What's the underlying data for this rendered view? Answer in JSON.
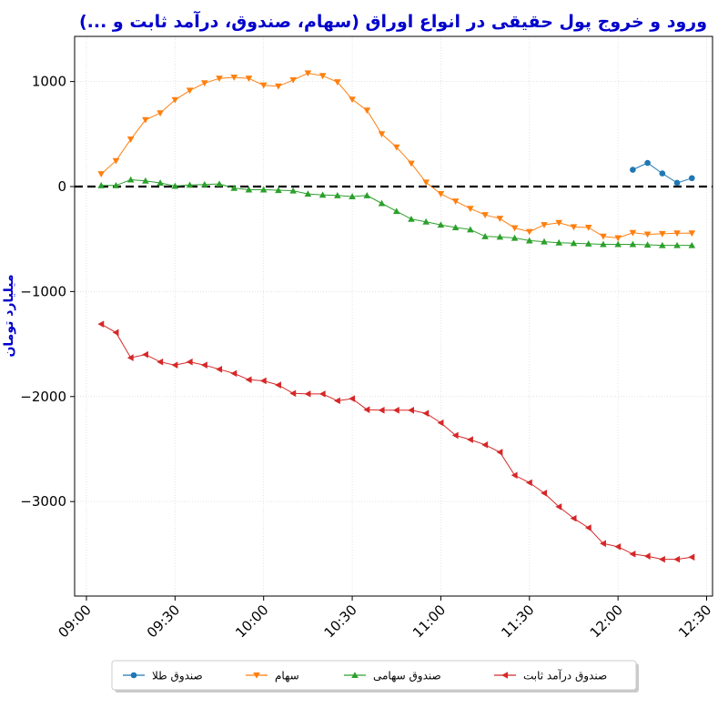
{
  "chart_data": {
    "type": "line",
    "title": "ورود و خروج پول حقیقی در انواع اوراق (سهام، صندوق، درآمد ثابت و ...)",
    "ylabel": "میلیارد تومان",
    "xlabel": "",
    "xlim": [
      "08:56",
      "12:32"
    ],
    "ylim": [
      -3900,
      1430
    ],
    "yticks": [
      1000,
      0,
      -1000,
      -2000,
      -3000
    ],
    "ytick_labels": [
      "1000",
      "0",
      "−1000",
      "−2000",
      "−3000"
    ],
    "xticks": [
      "09:00",
      "09:30",
      "10:00",
      "10:30",
      "11:00",
      "11:30",
      "12:00",
      "12:30"
    ],
    "grid": true,
    "zero_line": true,
    "legend_position": "bottom-center",
    "series": [
      {
        "name": "صندوق طلا",
        "color": "#1f77b4",
        "marker": "circle",
        "x": [
          "12:05",
          "12:10",
          "12:15",
          "12:20",
          "12:25"
        ],
        "values": [
          160,
          225,
          125,
          35,
          80
        ]
      },
      {
        "name": "سهام",
        "color": "#ff7f0e",
        "marker": "triangle-down",
        "x": [
          "09:05",
          "09:10",
          "09:15",
          "09:20",
          "09:25",
          "09:30",
          "09:35",
          "09:40",
          "09:45",
          "09:50",
          "09:55",
          "10:00",
          "10:05",
          "10:10",
          "10:15",
          "10:20",
          "10:25",
          "10:30",
          "10:35",
          "10:40",
          "10:45",
          "10:50",
          "10:55",
          "11:00",
          "11:05",
          "11:10",
          "11:15",
          "11:20",
          "11:25",
          "11:30",
          "11:35",
          "11:40",
          "11:45",
          "11:50",
          "11:55",
          "12:00",
          "12:05",
          "12:10",
          "12:15",
          "12:20",
          "12:25"
        ],
        "values": [
          120,
          245,
          450,
          635,
          700,
          825,
          915,
          985,
          1030,
          1040,
          1030,
          965,
          955,
          1015,
          1080,
          1055,
          995,
          830,
          725,
          500,
          375,
          220,
          40,
          -70,
          -140,
          -210,
          -270,
          -305,
          -395,
          -430,
          -365,
          -345,
          -385,
          -390,
          -475,
          -490,
          -440,
          -455,
          -450,
          -445,
          -445
        ]
      },
      {
        "name": "صندوق سهامی",
        "color": "#2ca02c",
        "marker": "triangle-up",
        "x": [
          "09:05",
          "09:10",
          "09:15",
          "09:20",
          "09:25",
          "09:30",
          "09:35",
          "09:40",
          "09:45",
          "09:50",
          "09:55",
          "10:00",
          "10:05",
          "10:10",
          "10:15",
          "10:20",
          "10:25",
          "10:30",
          "10:35",
          "10:40",
          "10:45",
          "10:50",
          "10:55",
          "11:00",
          "11:05",
          "11:10",
          "11:15",
          "11:20",
          "11:25",
          "11:30",
          "11:35",
          "11:40",
          "11:45",
          "11:50",
          "11:55",
          "12:00",
          "12:05",
          "12:10",
          "12:15",
          "12:20",
          "12:25"
        ],
        "values": [
          10,
          10,
          65,
          55,
          35,
          5,
          15,
          20,
          25,
          -15,
          -30,
          -30,
          -35,
          -40,
          -70,
          -80,
          -85,
          -95,
          -85,
          -160,
          -235,
          -310,
          -335,
          -365,
          -390,
          -410,
          -475,
          -480,
          -490,
          -515,
          -525,
          -535,
          -540,
          -545,
          -550,
          -550,
          -550,
          -555,
          -560,
          -560,
          -560
        ]
      },
      {
        "name": "صندوق درآمد ثابت",
        "color": "#d62728",
        "marker": "triangle-left",
        "x": [
          "09:05",
          "09:10",
          "09:15",
          "09:20",
          "09:25",
          "09:30",
          "09:35",
          "09:40",
          "09:45",
          "09:50",
          "09:55",
          "10:00",
          "10:05",
          "10:10",
          "10:15",
          "10:20",
          "10:25",
          "10:30",
          "10:35",
          "10:40",
          "10:45",
          "10:50",
          "10:55",
          "11:00",
          "11:05",
          "11:10",
          "11:15",
          "11:20",
          "11:25",
          "11:30",
          "11:35",
          "11:40",
          "11:45",
          "11:50",
          "11:55",
          "12:00",
          "12:05",
          "12:10",
          "12:15",
          "12:20",
          "12:25"
        ],
        "values": [
          -1310,
          -1390,
          -1630,
          -1600,
          -1670,
          -1700,
          -1670,
          -1700,
          -1740,
          -1780,
          -1840,
          -1850,
          -1890,
          -1970,
          -1975,
          -1975,
          -2040,
          -2020,
          -2125,
          -2130,
          -2130,
          -2130,
          -2160,
          -2250,
          -2370,
          -2410,
          -2460,
          -2530,
          -2750,
          -2820,
          -2920,
          -3050,
          -3160,
          -3250,
          -3400,
          -3430,
          -3500,
          -3520,
          -3550,
          -3550,
          -3530
        ]
      }
    ]
  }
}
